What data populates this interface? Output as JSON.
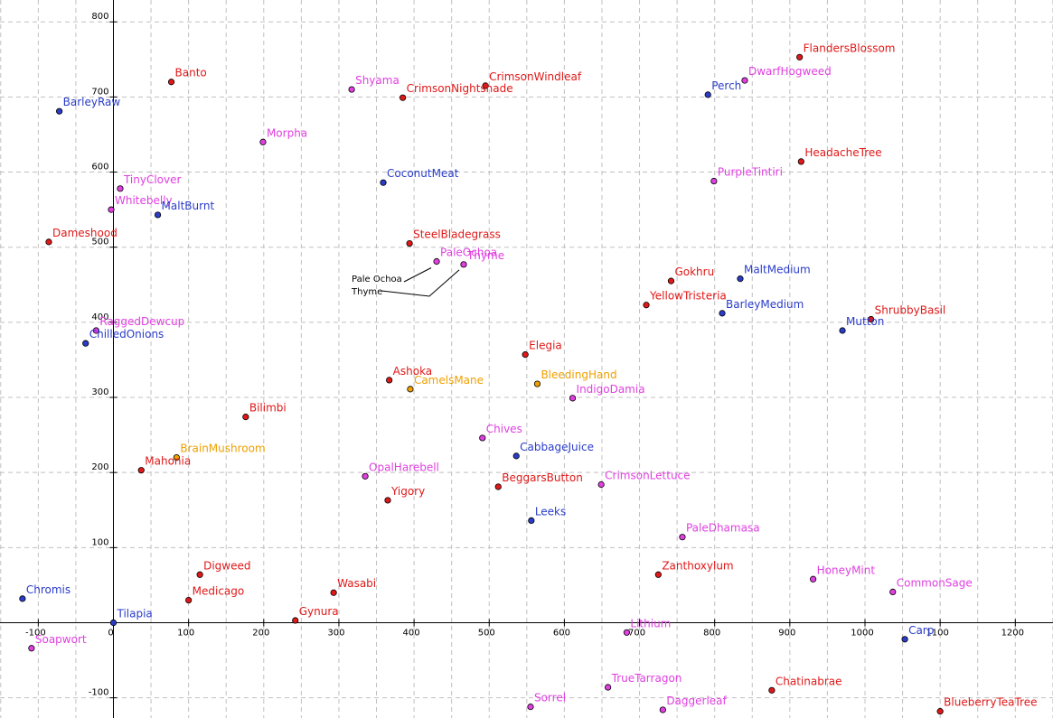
{
  "chart_data": {
    "type": "scatter",
    "title": "",
    "xlabel": "",
    "ylabel": "",
    "xlim": [
      -150,
      1250
    ],
    "ylim": [
      -130,
      820
    ],
    "grid": true,
    "xticks": [
      -100,
      0,
      100,
      200,
      300,
      400,
      500,
      600,
      700,
      800,
      900,
      1000,
      1100,
      1200
    ],
    "xtick_labels": [
      "-100",
      "0",
      "100",
      "200",
      "300",
      "400",
      "500",
      "600",
      "700",
      "800",
      "900",
      "1000",
      "1100",
      "1200"
    ],
    "yticks": [
      -100,
      100,
      200,
      300,
      400,
      500,
      600,
      700,
      800
    ],
    "ytick_labels": [
      "-100",
      "100",
      "200",
      "300",
      "400",
      "500",
      "600",
      "700",
      "800"
    ],
    "colors": {
      "red": "#e01818",
      "blue": "#2a3cc8",
      "magenta": "#e040e0",
      "orange": "#f0a000"
    },
    "points": [
      {
        "name": "Banto",
        "x": 77,
        "y": 720,
        "color": "red"
      },
      {
        "name": "BarleyRaw",
        "x": -72,
        "y": 681,
        "color": "blue"
      },
      {
        "name": "Shyama",
        "x": 317,
        "y": 710,
        "color": "magenta"
      },
      {
        "name": "CrimsonWindleaf",
        "x": 495,
        "y": 715,
        "color": "red"
      },
      {
        "name": "CrimsonNightshade",
        "x": 385,
        "y": 699,
        "color": "red"
      },
      {
        "name": "FlandersBlossom",
        "x": 913,
        "y": 753,
        "color": "red"
      },
      {
        "name": "DwarfHogweed",
        "x": 840,
        "y": 722,
        "color": "magenta"
      },
      {
        "name": "Perch",
        "x": 791,
        "y": 703,
        "color": "blue"
      },
      {
        "name": "Morpha",
        "x": 199,
        "y": 640,
        "color": "magenta"
      },
      {
        "name": "HeadacheTree",
        "x": 915,
        "y": 614,
        "color": "red"
      },
      {
        "name": "CoconutMeat",
        "x": 359,
        "y": 586,
        "color": "blue"
      },
      {
        "name": "PurpleTintiri",
        "x": 799,
        "y": 588,
        "color": "magenta"
      },
      {
        "name": "TinyClover",
        "x": 9,
        "y": 578,
        "color": "magenta"
      },
      {
        "name": "Whitebelly",
        "x": -3,
        "y": 550,
        "color": "magenta"
      },
      {
        "name": "MaltBurnt",
        "x": 59,
        "y": 543,
        "color": "blue"
      },
      {
        "name": "Dameshood",
        "x": -86,
        "y": 507,
        "color": "red"
      },
      {
        "name": "SteelBladegrass",
        "x": 394,
        "y": 505,
        "color": "red"
      },
      {
        "name": "PaleOchoa",
        "x": 430,
        "y": 481,
        "color": "magenta"
      },
      {
        "name": "Thyme",
        "x": 466,
        "y": 477,
        "color": "magenta"
      },
      {
        "name": "Gokhru",
        "x": 742,
        "y": 455,
        "color": "red"
      },
      {
        "name": "MaltMedium",
        "x": 834,
        "y": 458,
        "color": "blue"
      },
      {
        "name": "YellowTristeria",
        "x": 709,
        "y": 423,
        "color": "red"
      },
      {
        "name": "BarleyMedium",
        "x": 810,
        "y": 412,
        "color": "blue"
      },
      {
        "name": "ShrubbyBasil",
        "x": 1008,
        "y": 404,
        "color": "red"
      },
      {
        "name": "Mutton",
        "x": 970,
        "y": 389,
        "color": "blue"
      },
      {
        "name": "RaggedDewcup",
        "x": -23,
        "y": 389,
        "color": "magenta"
      },
      {
        "name": "ChilledOnions",
        "x": -37,
        "y": 372,
        "color": "blue"
      },
      {
        "name": "Elegia",
        "x": 548,
        "y": 357,
        "color": "red"
      },
      {
        "name": "Ashoka",
        "x": 367,
        "y": 323,
        "color": "red"
      },
      {
        "name": "CamelsMane",
        "x": 395,
        "y": 311,
        "color": "orange"
      },
      {
        "name": "BleedingHand",
        "x": 564,
        "y": 318,
        "color": "orange"
      },
      {
        "name": "IndigoDamia",
        "x": 611,
        "y": 299,
        "color": "magenta"
      },
      {
        "name": "Bilimbi",
        "x": 176,
        "y": 274,
        "color": "red"
      },
      {
        "name": "Chives",
        "x": 491,
        "y": 246,
        "color": "magenta"
      },
      {
        "name": "CabbageJuice",
        "x": 536,
        "y": 222,
        "color": "blue"
      },
      {
        "name": "BrainMushroom",
        "x": 84,
        "y": 220,
        "color": "orange"
      },
      {
        "name": "Mahonia",
        "x": 37,
        "y": 203,
        "color": "red"
      },
      {
        "name": "OpalHarebell",
        "x": 335,
        "y": 195,
        "color": "magenta"
      },
      {
        "name": "BeggarsButton",
        "x": 512,
        "y": 181,
        "color": "red"
      },
      {
        "name": "CrimsonLettuce",
        "x": 649,
        "y": 184,
        "color": "magenta"
      },
      {
        "name": "Yigory",
        "x": 365,
        "y": 163,
        "color": "red"
      },
      {
        "name": "Leeks",
        "x": 556,
        "y": 136,
        "color": "blue"
      },
      {
        "name": "PaleDhamasa",
        "x": 757,
        "y": 114,
        "color": "magenta"
      },
      {
        "name": "Digweed",
        "x": 115,
        "y": 64,
        "color": "red"
      },
      {
        "name": "Zanthoxylum",
        "x": 725,
        "y": 64,
        "color": "red"
      },
      {
        "name": "HoneyMint",
        "x": 931,
        "y": 58,
        "color": "magenta"
      },
      {
        "name": "Wasabi",
        "x": 293,
        "y": 40,
        "color": "red"
      },
      {
        "name": "CommonSage",
        "x": 1037,
        "y": 41,
        "color": "magenta"
      },
      {
        "name": "Chromis",
        "x": -121,
        "y": 32,
        "color": "blue"
      },
      {
        "name": "Medicago",
        "x": 100,
        "y": 30,
        "color": "red"
      },
      {
        "name": "Gynura",
        "x": 242,
        "y": 3,
        "color": "red"
      },
      {
        "name": "Tilapia",
        "x": 0,
        "y": 0,
        "color": "blue"
      },
      {
        "name": "Lithium",
        "x": 683,
        "y": -13,
        "color": "magenta"
      },
      {
        "name": "Soapwort",
        "x": -109,
        "y": -34,
        "color": "magenta"
      },
      {
        "name": "Carp",
        "x": 1053,
        "y": -22,
        "color": "blue"
      },
      {
        "name": "TrueTarragon",
        "x": 658,
        "y": -86,
        "color": "magenta"
      },
      {
        "name": "Chatinabrae",
        "x": 876,
        "y": -90,
        "color": "red"
      },
      {
        "name": "Sorrel",
        "x": 555,
        "y": -112,
        "color": "magenta"
      },
      {
        "name": "Daggerleaf",
        "x": 731,
        "y": -116,
        "color": "magenta"
      },
      {
        "name": "BlueberryTeaTree",
        "x": 1100,
        "y": -118,
        "color": "red"
      }
    ],
    "annotations": [
      {
        "text": "Pale Ochoa",
        "target": "PaleOchoa"
      },
      {
        "text": "Thyme",
        "target": "Thyme"
      }
    ]
  }
}
